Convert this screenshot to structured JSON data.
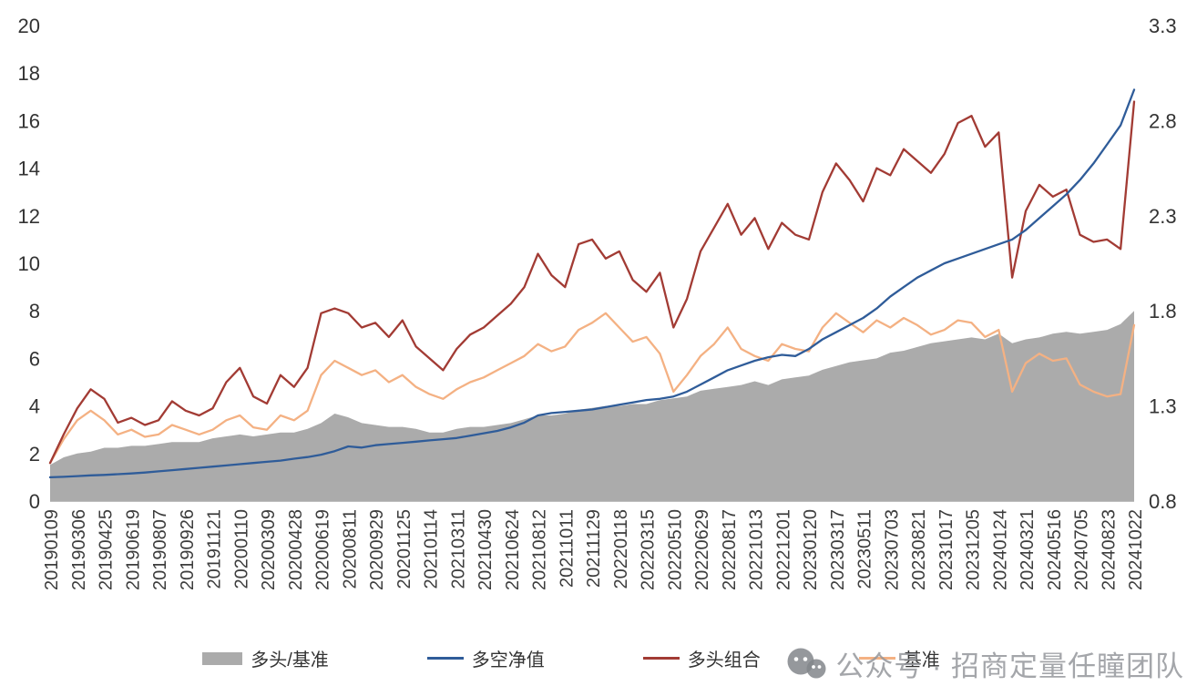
{
  "chart_data": {
    "type": "line",
    "title": "",
    "grid": false,
    "legend_position": "bottom",
    "x_axis": {
      "label_rotation": -90,
      "categories": [
        "20190109",
        "20190306",
        "20190425",
        "20190619",
        "20190807",
        "20190926",
        "20191121",
        "20200110",
        "20200309",
        "20200428",
        "20200619",
        "20200811",
        "20200929",
        "20201125",
        "20210114",
        "20210311",
        "20210430",
        "20210624",
        "20210812",
        "20211011",
        "20211129",
        "20220118",
        "20220315",
        "20220510",
        "20220629",
        "20220817",
        "20221013",
        "20221201",
        "20230120",
        "20230317",
        "20230511",
        "20230703",
        "20230821",
        "20231017",
        "20231205",
        "20240124",
        "20240321",
        "20240516",
        "20240705",
        "20240823",
        "20241022"
      ]
    },
    "left_axis": {
      "min": 0,
      "max": 20,
      "ticks": [
        0,
        2,
        4,
        6,
        8,
        10,
        12,
        14,
        16,
        18,
        20
      ]
    },
    "right_axis": {
      "min": 0.8,
      "max": 3.3,
      "ticks": [
        0.8,
        1.3,
        1.8,
        2.3,
        2.8,
        3.3
      ]
    },
    "points_per_series": 81,
    "series": [
      {
        "id": "long-over-benchmark",
        "name": "多头/基准",
        "type": "area",
        "axis": "right",
        "color": "#ABABAB",
        "values": [
          0.99,
          1.03,
          1.05,
          1.06,
          1.08,
          1.08,
          1.09,
          1.09,
          1.1,
          1.11,
          1.11,
          1.11,
          1.13,
          1.14,
          1.15,
          1.14,
          1.15,
          1.16,
          1.16,
          1.18,
          1.21,
          1.26,
          1.24,
          1.21,
          1.2,
          1.19,
          1.19,
          1.18,
          1.16,
          1.16,
          1.18,
          1.19,
          1.19,
          1.2,
          1.21,
          1.23,
          1.25,
          1.25,
          1.26,
          1.28,
          1.29,
          1.3,
          1.3,
          1.31,
          1.31,
          1.33,
          1.34,
          1.35,
          1.38,
          1.39,
          1.4,
          1.41,
          1.43,
          1.41,
          1.44,
          1.45,
          1.46,
          1.49,
          1.51,
          1.53,
          1.54,
          1.55,
          1.58,
          1.59,
          1.61,
          1.63,
          1.64,
          1.65,
          1.66,
          1.65,
          1.68,
          1.63,
          1.65,
          1.66,
          1.68,
          1.69,
          1.68,
          1.69,
          1.7,
          1.73,
          1.8
        ]
      },
      {
        "id": "long-short-nav",
        "name": "多空净值",
        "type": "line",
        "axis": "left",
        "color": "#2F5C99",
        "values": [
          1.0,
          1.02,
          1.05,
          1.08,
          1.1,
          1.13,
          1.16,
          1.2,
          1.25,
          1.3,
          1.35,
          1.4,
          1.45,
          1.5,
          1.55,
          1.6,
          1.65,
          1.7,
          1.78,
          1.85,
          1.95,
          2.1,
          2.3,
          2.25,
          2.35,
          2.4,
          2.45,
          2.5,
          2.55,
          2.6,
          2.65,
          2.75,
          2.85,
          2.95,
          3.1,
          3.3,
          3.6,
          3.7,
          3.75,
          3.8,
          3.85,
          3.95,
          4.05,
          4.15,
          4.25,
          4.3,
          4.4,
          4.6,
          4.9,
          5.2,
          5.5,
          5.7,
          5.9,
          6.05,
          6.15,
          6.1,
          6.4,
          6.8,
          7.1,
          7.4,
          7.7,
          8.1,
          8.6,
          9.0,
          9.4,
          9.7,
          10.0,
          10.2,
          10.4,
          10.6,
          10.8,
          11.0,
          11.4,
          11.9,
          12.4,
          12.9,
          13.5,
          14.2,
          15.0,
          15.8,
          17.3
        ]
      },
      {
        "id": "long-portfolio",
        "name": "多头组合",
        "type": "line",
        "axis": "left",
        "color": "#A23B34",
        "values": [
          1.6,
          2.8,
          3.9,
          4.7,
          4.3,
          3.3,
          3.5,
          3.2,
          3.4,
          4.2,
          3.8,
          3.6,
          3.9,
          5.0,
          5.6,
          4.4,
          4.1,
          5.3,
          4.8,
          5.6,
          7.9,
          8.1,
          7.9,
          7.3,
          7.5,
          6.9,
          7.6,
          6.5,
          6.0,
          5.5,
          6.4,
          7.0,
          7.3,
          7.8,
          8.3,
          9.0,
          10.4,
          9.5,
          9.0,
          10.8,
          11.0,
          10.2,
          10.5,
          9.3,
          8.8,
          9.6,
          7.3,
          8.5,
          10.5,
          11.5,
          12.5,
          11.2,
          11.9,
          10.6,
          11.7,
          11.2,
          11.0,
          13.0,
          14.2,
          13.5,
          12.6,
          14.0,
          13.7,
          14.8,
          14.3,
          13.8,
          14.6,
          15.9,
          16.2,
          14.9,
          15.5,
          9.4,
          12.2,
          13.3,
          12.8,
          13.1,
          11.2,
          10.9,
          11.0,
          10.6,
          16.8
        ]
      },
      {
        "id": "benchmark",
        "name": "基准",
        "type": "line",
        "axis": "left",
        "color": "#F4B183",
        "values": [
          1.6,
          2.6,
          3.4,
          3.8,
          3.4,
          2.8,
          3.0,
          2.7,
          2.8,
          3.2,
          3.0,
          2.8,
          3.0,
          3.4,
          3.6,
          3.1,
          3.0,
          3.6,
          3.4,
          3.8,
          5.3,
          5.9,
          5.6,
          5.3,
          5.5,
          5.0,
          5.3,
          4.8,
          4.5,
          4.3,
          4.7,
          5.0,
          5.2,
          5.5,
          5.8,
          6.1,
          6.6,
          6.3,
          6.5,
          7.2,
          7.5,
          7.9,
          7.3,
          6.7,
          6.9,
          6.2,
          4.6,
          5.3,
          6.1,
          6.6,
          7.3,
          6.4,
          6.1,
          5.9,
          6.6,
          6.4,
          6.3,
          7.3,
          7.9,
          7.5,
          7.1,
          7.6,
          7.3,
          7.7,
          7.4,
          7.0,
          7.2,
          7.6,
          7.5,
          6.9,
          7.2,
          4.6,
          5.8,
          6.2,
          5.9,
          6.0,
          4.9,
          4.6,
          4.4,
          4.5,
          7.4
        ]
      }
    ]
  },
  "watermark": {
    "text": "公众号 · 招商定量任瞳团队"
  }
}
